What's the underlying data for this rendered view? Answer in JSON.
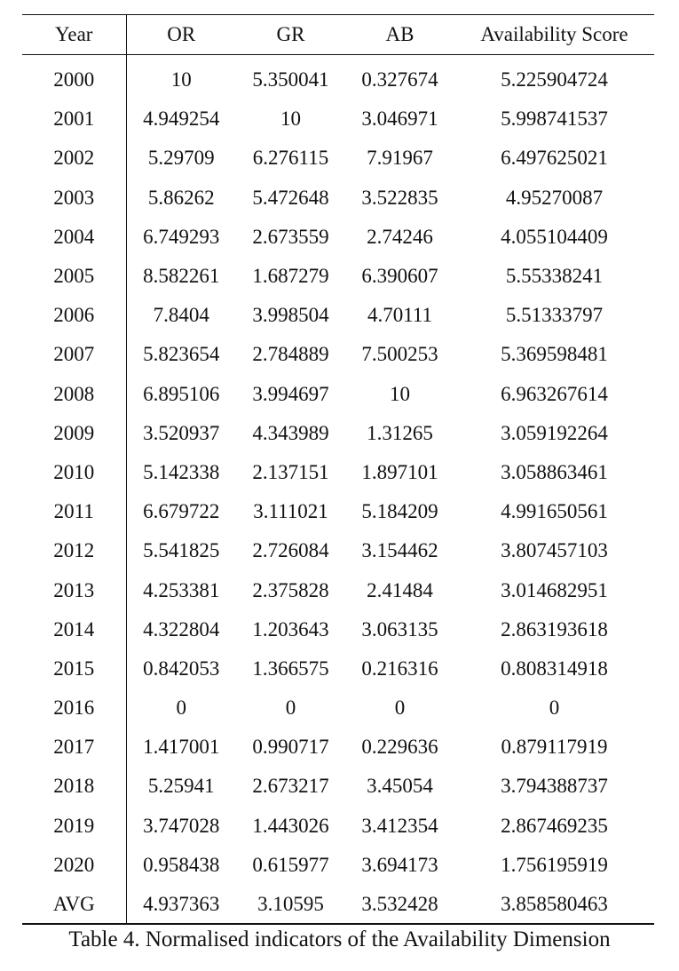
{
  "table": {
    "headers": [
      "Year",
      "OR",
      "GR",
      "AB",
      "Availability Score"
    ],
    "rows": [
      [
        "2000",
        "10",
        "5.350041",
        "0.327674",
        "5.225904724"
      ],
      [
        "2001",
        "4.949254",
        "10",
        "3.046971",
        "5.998741537"
      ],
      [
        "2002",
        "5.29709",
        "6.276115",
        "7.91967",
        "6.497625021"
      ],
      [
        "2003",
        "5.86262",
        "5.472648",
        "3.522835",
        "4.95270087"
      ],
      [
        "2004",
        "6.749293",
        "2.673559",
        "2.74246",
        "4.055104409"
      ],
      [
        "2005",
        "8.582261",
        "1.687279",
        "6.390607",
        "5.55338241"
      ],
      [
        "2006",
        "7.8404",
        "3.998504",
        "4.70111",
        "5.51333797"
      ],
      [
        "2007",
        "5.823654",
        "2.784889",
        "7.500253",
        "5.369598481"
      ],
      [
        "2008",
        "6.895106",
        "3.994697",
        "10",
        "6.963267614"
      ],
      [
        "2009",
        "3.520937",
        "4.343989",
        "1.31265",
        "3.059192264"
      ],
      [
        "2010",
        "5.142338",
        "2.137151",
        "1.897101",
        "3.058863461"
      ],
      [
        "2011",
        "6.679722",
        "3.111021",
        "5.184209",
        "4.991650561"
      ],
      [
        "2012",
        "5.541825",
        "2.726084",
        "3.154462",
        "3.807457103"
      ],
      [
        "2013",
        "4.253381",
        "2.375828",
        "2.41484",
        "3.014682951"
      ],
      [
        "2014",
        "4.322804",
        "1.203643",
        "3.063135",
        "2.863193618"
      ],
      [
        "2015",
        "0.842053",
        "1.366575",
        "0.216316",
        "0.808314918"
      ],
      [
        "2016",
        "0",
        "0",
        "0",
        "0"
      ],
      [
        "2017",
        "1.417001",
        "0.990717",
        "0.229636",
        "0.879117919"
      ],
      [
        "2018",
        "5.25941",
        "2.673217",
        "3.45054",
        "3.794388737"
      ],
      [
        "2019",
        "3.747028",
        "1.443026",
        "3.412354",
        "2.867469235"
      ],
      [
        "2020",
        "0.958438",
        "0.615977",
        "3.694173",
        "1.756195919"
      ],
      [
        "AVG",
        "4.937363",
        "3.10595",
        "3.532428",
        "3.858580463"
      ]
    ]
  },
  "caption": "Table 4. Normalised indicators of the Availability Dimension"
}
